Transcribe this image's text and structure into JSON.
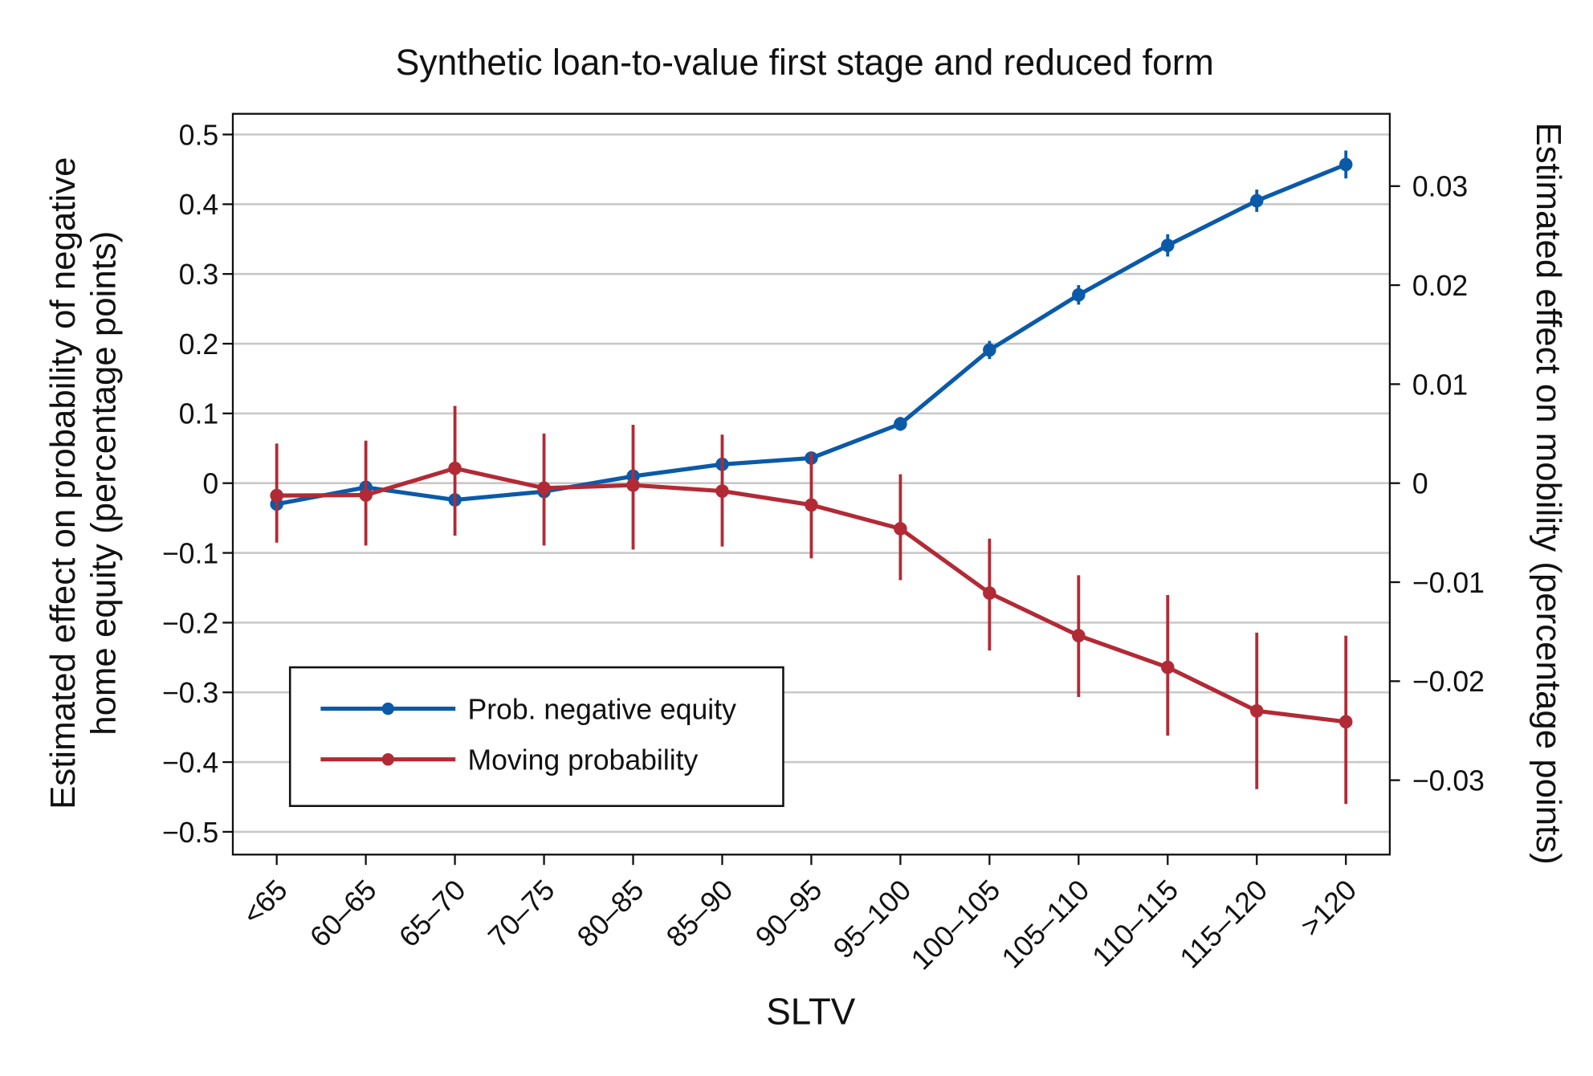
{
  "chart_data": {
    "type": "line",
    "title": "Synthetic loan-to-value first stage and reduced form",
    "xlabel": "SLTV",
    "ylabel_left": "Estimated effect on probability of negative home equity (percentage points)",
    "ylabel_left_lines": [
      "Estimated effect on probability of negative",
      "home equity (percentage points)"
    ],
    "ylabel_right": "Estimated effect on mobility (percentage points)",
    "categories": [
      "<65",
      "60–65",
      "65–70",
      "70–75",
      "80–85",
      "85–90",
      "90–95",
      "95–100",
      "100–105",
      "105–110",
      "110–115",
      "115–120",
      ">120"
    ],
    "y_left": {
      "range": [
        -0.53,
        0.53
      ],
      "ticks": [
        0.5,
        0.4,
        0.3,
        0.2,
        0.1,
        0,
        -0.1,
        -0.2,
        -0.3,
        -0.4,
        -0.5
      ],
      "tick_labels": [
        "0.5",
        "0.4",
        "0.3",
        "0.2",
        "0.1",
        "0",
        "−0.1",
        "−0.2",
        "−0.3",
        "−0.4",
        "−0.5"
      ]
    },
    "y_right": {
      "range": [
        -0.0357,
        0.0357
      ],
      "ticks": [
        0.03,
        0.02,
        0.01,
        0,
        -0.01,
        -0.02,
        -0.03
      ],
      "tick_labels": [
        "0.03",
        "0.02",
        "0.01",
        "0",
        "−0.01",
        "−0.02",
        "−0.03"
      ]
    },
    "grid": true,
    "legend_placement": "bottom-left",
    "series": [
      {
        "name": "Prob. negative equity",
        "axis": "left",
        "color": "#0a5aa8",
        "values": [
          -0.03,
          -0.006,
          -0.024,
          -0.012,
          0.01,
          0.027,
          0.036,
          0.085,
          0.191,
          0.27,
          0.341,
          0.405,
          0.457
        ],
        "ci_low": [
          -0.04,
          -0.014,
          -0.032,
          -0.02,
          0.002,
          0.019,
          0.028,
          0.075,
          0.178,
          0.256,
          0.325,
          0.389,
          0.437
        ],
        "ci_high": [
          -0.02,
          0.002,
          -0.016,
          -0.004,
          0.018,
          0.035,
          0.044,
          0.095,
          0.204,
          0.284,
          0.357,
          0.421,
          0.477
        ]
      },
      {
        "name": "Moving probability",
        "axis": "right",
        "color": "#b22a35",
        "values": [
          -0.00125,
          -0.0012,
          0.0015,
          -0.0005,
          -0.0002,
          -0.0008,
          -0.0022,
          -0.0046,
          -0.0111,
          -0.0154,
          -0.0186,
          -0.023,
          -0.0241
        ],
        "ci_low": [
          -0.006,
          -0.0063,
          -0.0053,
          -0.0063,
          -0.0067,
          -0.0064,
          -0.0076,
          -0.0098,
          -0.0169,
          -0.0216,
          -0.0255,
          -0.0309,
          -0.0324
        ],
        "ci_high": [
          0.004,
          0.0043,
          0.0078,
          0.005,
          0.0059,
          0.0049,
          0.0031,
          0.0009,
          -0.0056,
          -0.0093,
          -0.0113,
          -0.0151,
          -0.0154
        ]
      }
    ]
  }
}
